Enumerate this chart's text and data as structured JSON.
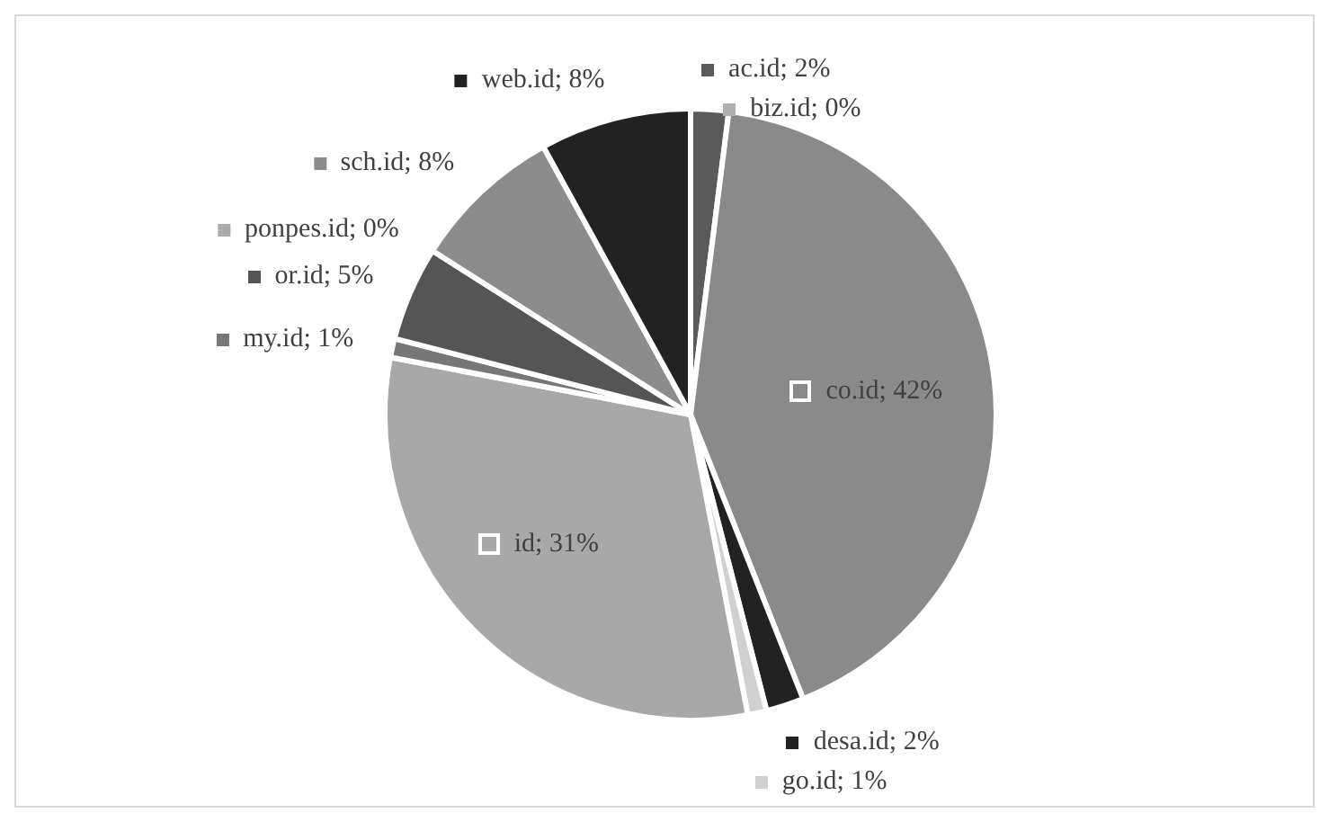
{
  "chart_data": {
    "type": "pie",
    "categories": [
      "ac.id",
      "biz.id",
      "co.id",
      "desa.id",
      "go.id",
      "id",
      "my.id",
      "or.id",
      "ponpes.id",
      "sch.id",
      "web.id"
    ],
    "values": [
      2,
      0,
      42,
      2,
      1,
      31,
      1,
      5,
      0,
      8,
      8
    ],
    "value_labels": [
      "2%",
      "0%",
      "42%",
      "2%",
      "1%",
      "31%",
      "1%",
      "5%",
      "0%",
      "8%",
      "8%"
    ],
    "colors": [
      "#5a5a5a",
      "#b0b0b0",
      "#8a8a8a",
      "#222222",
      "#d0d0d0",
      "#a8a8a8",
      "#777777",
      "#555555",
      "#aaaaaa",
      "#8c8c8c",
      "#222222"
    ],
    "legend": "left"
  }
}
